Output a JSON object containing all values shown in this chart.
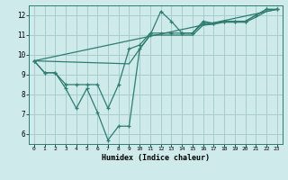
{
  "background_color": "#ceeaea",
  "grid_color": "#a8cccc",
  "line_color": "#2e7d70",
  "xlabel": "Humidex (Indice chaleur)",
  "xlim": [
    -0.5,
    23.5
  ],
  "ylim": [
    5.5,
    12.5
  ],
  "xticks": [
    0,
    1,
    2,
    3,
    4,
    5,
    6,
    7,
    8,
    9,
    10,
    11,
    12,
    13,
    14,
    15,
    16,
    17,
    18,
    19,
    20,
    21,
    22,
    23
  ],
  "yticks": [
    6,
    7,
    8,
    9,
    10,
    11,
    12
  ],
  "marker_lines": [
    {
      "x": [
        0,
        1,
        2,
        3,
        4,
        5,
        6,
        7,
        8,
        9,
        10,
        11,
        12,
        13,
        14,
        15,
        16,
        17,
        18,
        19,
        20,
        21,
        22,
        23
      ],
      "y": [
        9.7,
        9.1,
        9.1,
        8.3,
        7.3,
        8.3,
        7.1,
        5.7,
        6.4,
        6.4,
        10.3,
        11.0,
        12.2,
        11.7,
        11.1,
        11.1,
        11.7,
        11.6,
        11.7,
        11.7,
        11.7,
        12.0,
        12.3,
        12.3
      ]
    },
    {
      "x": [
        0,
        1,
        2,
        3,
        4,
        5,
        6,
        7,
        8,
        9,
        10,
        11,
        12,
        13,
        14,
        15,
        16,
        17,
        18,
        19,
        20,
        21,
        22,
        23
      ],
      "y": [
        9.7,
        9.1,
        9.1,
        8.5,
        8.5,
        8.5,
        8.5,
        7.3,
        8.5,
        10.3,
        10.5,
        11.1,
        11.1,
        11.1,
        11.1,
        11.1,
        11.6,
        11.6,
        11.7,
        11.7,
        11.7,
        12.0,
        12.3,
        12.3
      ]
    }
  ],
  "trend_lines": [
    {
      "x": [
        0,
        23
      ],
      "y": [
        9.7,
        12.3
      ]
    },
    {
      "x": [
        0,
        9,
        10,
        11,
        14,
        15,
        16,
        17,
        18,
        19,
        20,
        21,
        22,
        23
      ],
      "y": [
        9.7,
        9.55,
        10.3,
        11.0,
        11.0,
        11.0,
        11.5,
        11.55,
        11.65,
        11.65,
        11.65,
        11.9,
        12.2,
        12.3
      ]
    }
  ]
}
